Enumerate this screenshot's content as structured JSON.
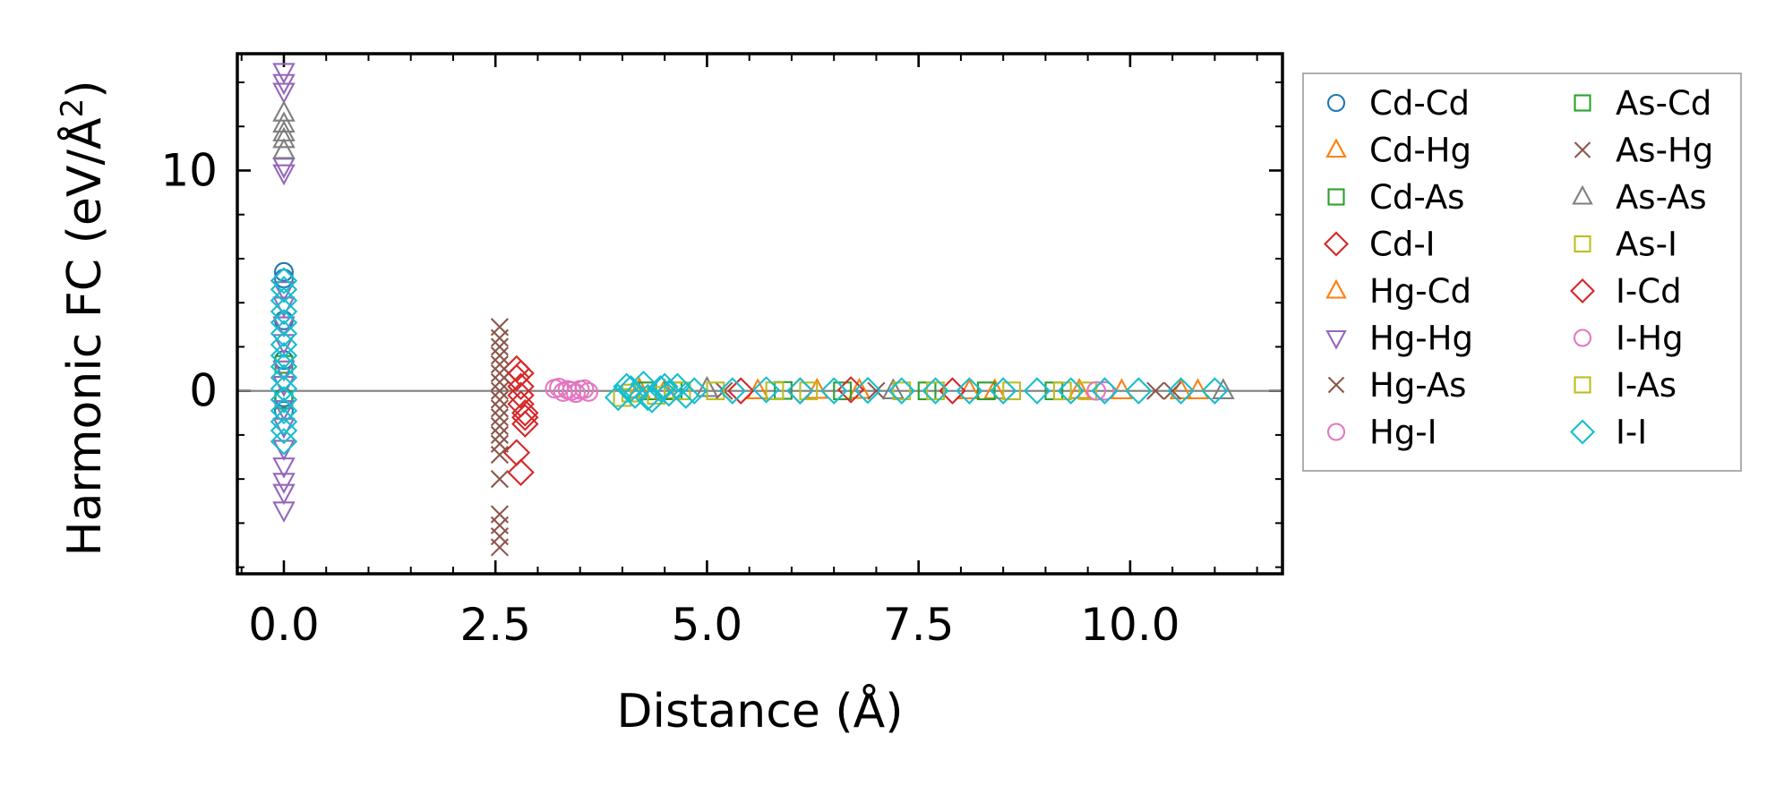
{
  "chart_data": {
    "type": "scatter",
    "title": "",
    "xlabel": "Distance (Å)",
    "ylabel_main": "Harmonic FC (eV/Å",
    "ylabel_sup": "2",
    "ylabel_close": ")",
    "xlim": [
      -0.55,
      11.8
    ],
    "ylim": [
      -8.3,
      15.3
    ],
    "x_ticks": [
      0.0,
      2.5,
      5.0,
      7.5,
      10.0
    ],
    "x_tick_labels": [
      "0.0",
      "2.5",
      "5.0",
      "7.5",
      "10.0"
    ],
    "y_ticks": [
      0,
      10
    ],
    "y_tick_labels": [
      "0",
      "10"
    ],
    "legend_position": "outside-right",
    "grid": false,
    "reference_line": {
      "y": 0,
      "color": "#808080"
    },
    "series": [
      {
        "name": "Cd-Cd",
        "marker": "circle",
        "color": "#1f77b4",
        "x": [
          0,
          0,
          0,
          0,
          0,
          0
        ],
        "y": [
          5.4,
          5.1,
          3.2,
          1.4,
          -0.3,
          -0.9
        ]
      },
      {
        "name": "Cd-Hg",
        "marker": "triangle",
        "color": "#ff7f0e",
        "x": [
          4.2,
          5.6,
          6.8,
          8.1,
          9.4,
          10.6,
          10.8
        ],
        "y": [
          0.05,
          0,
          0.02,
          0,
          0.01,
          0,
          0
        ]
      },
      {
        "name": "Cd-As",
        "marker": "square",
        "color": "#2ca02c",
        "x": [
          0,
          0,
          4.3,
          5.9,
          7.6,
          9.1
        ],
        "y": [
          1.2,
          -0.4,
          0,
          0.02,
          0,
          0
        ]
      },
      {
        "name": "Cd-I",
        "marker": "diamond",
        "color": "#d62728",
        "x": [
          2.75,
          2.75,
          2.8,
          2.8,
          2.8,
          2.85,
          2.85,
          2.75,
          2.8,
          6.1,
          7.9
        ],
        "y": [
          1.0,
          0.6,
          0.2,
          -0.2,
          -0.6,
          -1.0,
          -1.5,
          -2.8,
          -3.7,
          0,
          0
        ]
      },
      {
        "name": "Hg-Cd",
        "marker": "triangle",
        "color": "#ff7f0e",
        "x": [
          4.5,
          6.3,
          8.4,
          9.9
        ],
        "y": [
          0,
          0.02,
          0,
          0
        ]
      },
      {
        "name": "Hg-Hg",
        "marker": "triangle_down",
        "color": "#9467bd",
        "x": [
          0,
          0,
          0,
          0,
          0,
          0,
          0,
          0,
          0,
          0,
          0,
          0,
          0,
          0,
          0,
          0,
          0,
          0
        ],
        "y": [
          14.5,
          14.0,
          13.6,
          10.2,
          9.9,
          4.6,
          3.9,
          3.0,
          2.2,
          1.0,
          -0.8,
          -1.6,
          -2.6,
          -3.4,
          -4.1,
          -4.6,
          -5.4,
          0.3
        ]
      },
      {
        "name": "Hg-As",
        "marker": "x",
        "color": "#8c564b",
        "x": [
          2.55,
          2.55,
          2.55,
          2.55,
          2.55,
          2.55,
          2.55,
          2.55,
          2.55,
          2.55,
          2.55,
          2.55,
          2.55,
          2.55,
          2.55,
          2.55,
          2.55,
          2.55,
          2.55,
          2.55,
          10.3
        ],
        "y": [
          2.9,
          2.4,
          2.0,
          1.6,
          1.2,
          0.8,
          0.4,
          0.0,
          -0.4,
          -0.8,
          -1.2,
          -1.6,
          -2.0,
          -2.4,
          -2.9,
          -4.0,
          -5.6,
          -6.1,
          -6.6,
          -7.1,
          0
        ]
      },
      {
        "name": "Hg-I",
        "marker": "circle",
        "color": "#e377c2",
        "x": [
          3.25,
          3.3,
          3.35,
          3.45,
          3.55,
          3.6,
          9.7
        ],
        "y": [
          0.15,
          -0.05,
          0.05,
          -0.1,
          0.08,
          -0.05,
          0
        ]
      },
      {
        "name": "As-Cd",
        "marker": "square",
        "color": "#2ca02c",
        "x": [
          4.6,
          6.6,
          8.3
        ],
        "y": [
          0,
          0,
          0
        ]
      },
      {
        "name": "As-Hg",
        "marker": "x",
        "color": "#8c564b",
        "x": [
          5.2,
          7.0,
          10.5
        ],
        "y": [
          0,
          0,
          0
        ]
      },
      {
        "name": "As-As",
        "marker": "triangle",
        "color": "#7f7f7f",
        "x": [
          0,
          0,
          0,
          0,
          0,
          5.0,
          7.2,
          11.1
        ],
        "y": [
          12.6,
          12.1,
          11.7,
          11.4,
          10.9,
          0.1,
          0,
          0
        ]
      },
      {
        "name": "As-I",
        "marker": "square",
        "color": "#bcbd22",
        "x": [
          4.0,
          4.4,
          5.1,
          6.2,
          7.3,
          8.6,
          9.5
        ],
        "y": [
          -0.3,
          -0.2,
          0,
          0,
          0,
          0,
          0
        ]
      },
      {
        "name": "I-Cd",
        "marker": "diamond",
        "color": "#d62728",
        "x": [
          2.8,
          2.85,
          5.4,
          6.7
        ],
        "y": [
          0.8,
          -1.2,
          0,
          0.05
        ]
      },
      {
        "name": "I-Hg",
        "marker": "circle",
        "color": "#e377c2",
        "x": [
          3.2,
          3.4,
          3.5,
          9.6
        ],
        "y": [
          0.1,
          0,
          0.05,
          0
        ]
      },
      {
        "name": "I-As",
        "marker": "square",
        "color": "#bcbd22",
        "x": [
          4.1,
          4.7,
          5.8,
          7.7,
          9.2
        ],
        "y": [
          -0.1,
          0,
          0,
          0,
          0
        ]
      },
      {
        "name": "I-I",
        "marker": "diamond",
        "color": "#17becf",
        "x": [
          0,
          0,
          0,
          0,
          0,
          0,
          0,
          0,
          0,
          0,
          0,
          0,
          0,
          0,
          0,
          0,
          3.95,
          4.05,
          4.15,
          4.25,
          4.35,
          4.45,
          4.55,
          4.65,
          4.75,
          4.85,
          4.1,
          4.3,
          4.5,
          5.3,
          5.7,
          6.1,
          6.5,
          6.9,
          7.3,
          7.7,
          8.1,
          8.5,
          8.9,
          9.3,
          9.7,
          10.1,
          10.6,
          11.0
        ],
        "y": [
          5.0,
          4.6,
          4.1,
          3.6,
          3.1,
          2.6,
          2.1,
          1.6,
          1.1,
          0.6,
          0.1,
          -0.4,
          -0.9,
          -1.4,
          -1.8,
          -2.3,
          -0.3,
          0.2,
          -0.2,
          0.3,
          -0.4,
          0.1,
          -0.1,
          0.2,
          -0.2,
          0,
          0.1,
          -0.3,
          0.2,
          0,
          0.05,
          0,
          0,
          0.02,
          0,
          0,
          0,
          0,
          0,
          0,
          0,
          0,
          0,
          0
        ]
      }
    ]
  }
}
